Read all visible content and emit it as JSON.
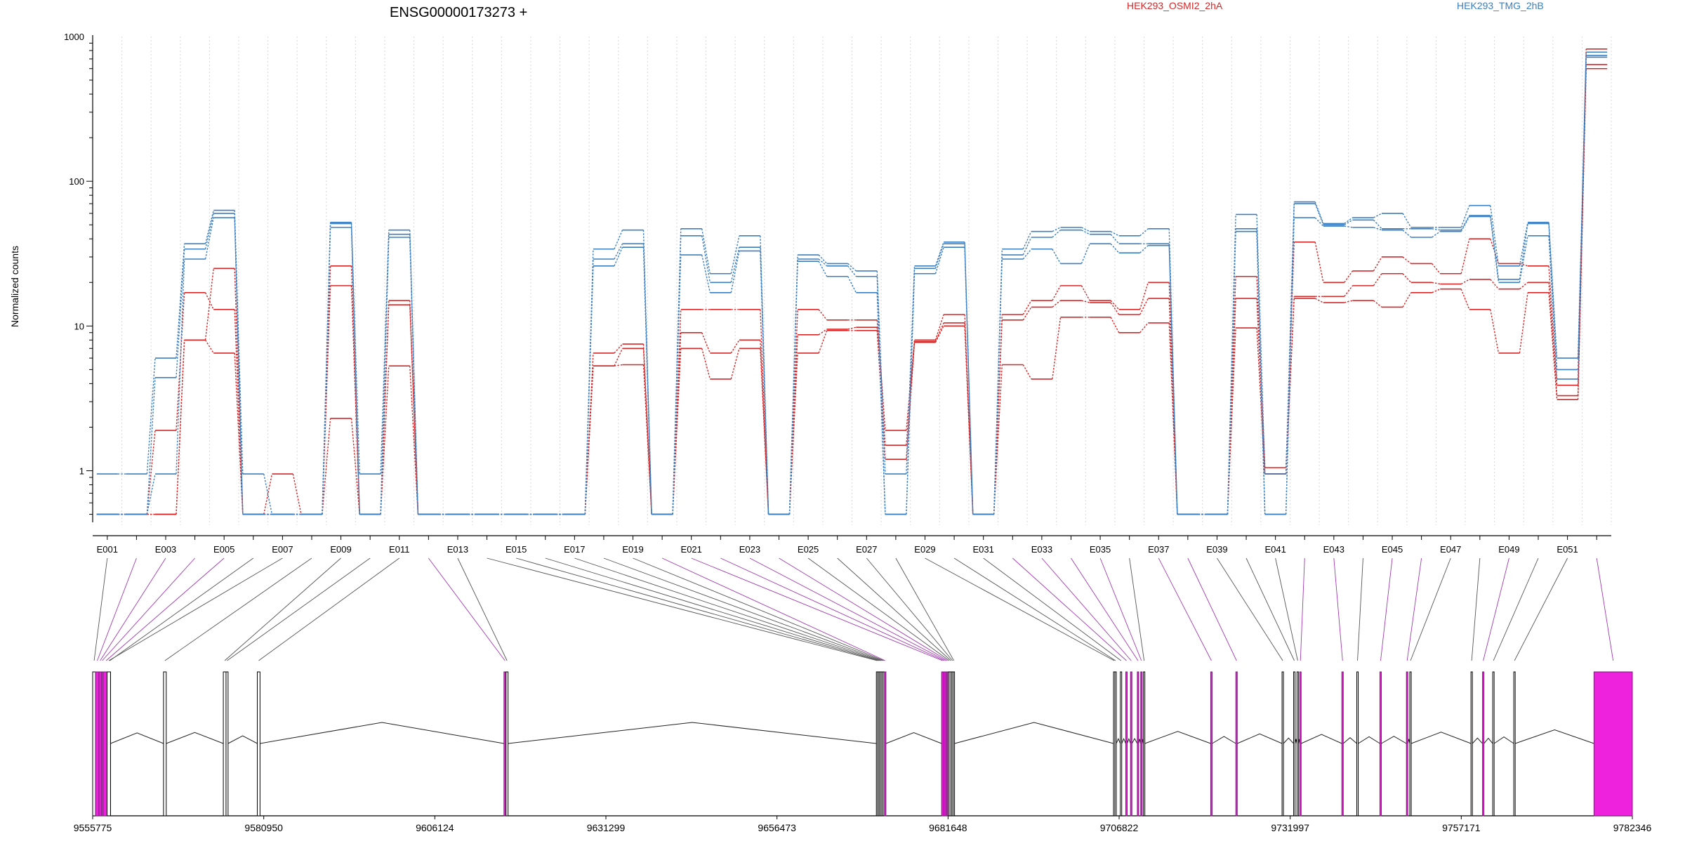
{
  "title": "ENSG00000173273 +",
  "ylabel": "Normalized counts",
  "colors": {
    "HEK293_OSMI2_2hA": "#d62728",
    "HEK293_TMG_2hB": "#3b7fc0",
    "connector_plain": "#555555",
    "connector_highlight": "#a03ab0",
    "highlight_fill": "#ee22dd"
  },
  "chart_data": {
    "type": "line",
    "title": "ENSG00000173273 +",
    "xlabel": "",
    "ylabel": "Normalized counts",
    "yscale": "log",
    "ylim": [
      0.45,
      1000
    ],
    "yticks": [
      "1",
      "10",
      "100",
      "1000"
    ],
    "exons": [
      "E001",
      "E002",
      "E003",
      "E004",
      "E005",
      "E006",
      "E007",
      "E008",
      "E009",
      "E010",
      "E011",
      "E012",
      "E013",
      "E014",
      "E015",
      "E016",
      "E017",
      "E018",
      "E019",
      "E020",
      "E021",
      "E022",
      "E023",
      "E024",
      "E025",
      "E026",
      "E027",
      "E028",
      "E029",
      "E030",
      "E031",
      "E032",
      "E033",
      "E034",
      "E035",
      "E036",
      "E037",
      "E038",
      "E039",
      "E040",
      "E041",
      "E042",
      "E043",
      "E044",
      "E045",
      "E046",
      "E047",
      "E048",
      "E049",
      "E050",
      "E051",
      "E052"
    ],
    "tick_labels": [
      "E001",
      "E003",
      "E005",
      "E007",
      "E009",
      "E011",
      "E013",
      "E015",
      "E017",
      "E019",
      "E021",
      "E023",
      "E025",
      "E027",
      "E029",
      "E031",
      "E033",
      "E035",
      "E037",
      "E039",
      "E041",
      "E043",
      "E045",
      "E047",
      "E049",
      "E051"
    ],
    "series": [
      {
        "name": "HEK293_OSMI2_2hA",
        "group": "HEK293_OSMI2_2hA",
        "values": [
          0.5,
          0.5,
          0.5,
          8,
          25,
          0.5,
          0.95,
          0.5,
          26,
          0.5,
          15,
          0.5,
          0.5,
          0.5,
          0.5,
          0.5,
          0.5,
          6.5,
          7.5,
          0.5,
          13,
          13,
          13,
          0.5,
          13,
          11,
          11,
          1.9,
          8,
          12,
          0.5,
          12,
          15,
          19,
          15,
          13,
          20,
          0.5,
          0.5,
          22,
          1.05,
          38,
          20,
          24,
          30,
          27,
          23,
          40,
          27,
          26,
          3.9,
          820
        ]
      },
      {
        "name": "HEK293_OSMI2_2hA",
        "group": "HEK293_OSMI2_2hA",
        "values": [
          0.5,
          0.5,
          1.9,
          17,
          13,
          0.5,
          0.5,
          0.5,
          19,
          0.5,
          14,
          0.5,
          0.5,
          0.5,
          0.5,
          0.5,
          0.5,
          5.3,
          7,
          0.5,
          9,
          6.5,
          8,
          0.5,
          8.7,
          9.5,
          9.8,
          1.5,
          7.8,
          10.5,
          0.5,
          11,
          13.5,
          15,
          14.5,
          12,
          15.5,
          0.5,
          0.5,
          15.5,
          0.95,
          16,
          16,
          19,
          23,
          20,
          19.5,
          21,
          18,
          20,
          3.3,
          640
        ]
      },
      {
        "name": "HEK293_OSMI2_2hA",
        "group": "HEK293_OSMI2_2hA",
        "values": [
          0.5,
          0.5,
          0.5,
          8,
          6.5,
          0.5,
          0.5,
          0.5,
          2.3,
          0.5,
          5.3,
          0.5,
          0.5,
          0.5,
          0.5,
          0.5,
          0.5,
          5.3,
          5.4,
          0.5,
          7,
          4.3,
          7,
          0.5,
          6.5,
          9.3,
          9.3,
          1.2,
          7.7,
          10,
          0.5,
          5.4,
          4.3,
          11.5,
          11.5,
          9,
          10.5,
          0.5,
          0.5,
          9.7,
          0.95,
          15.5,
          14.5,
          15,
          13.5,
          17,
          18,
          13,
          6.5,
          17,
          3.1,
          600
        ]
      },
      {
        "name": "HEK293_TMG_2hB",
        "group": "HEK293_TMG_2hB",
        "values": [
          0.95,
          0.95,
          6,
          37,
          63,
          0.95,
          0.5,
          0.5,
          52,
          0.95,
          46,
          0.5,
          0.5,
          0.5,
          0.5,
          0.5,
          0.5,
          34,
          46,
          0.5,
          47,
          23,
          42,
          0.5,
          31,
          27,
          24,
          0.95,
          26,
          38,
          0.5,
          34,
          45,
          48,
          45,
          42,
          47,
          0.5,
          0.5,
          59,
          0.95,
          72,
          51,
          56,
          60,
          48,
          48,
          68,
          26,
          52,
          6,
          780
        ]
      },
      {
        "name": "HEK293_TMG_2hB",
        "group": "HEK293_TMG_2hB",
        "values": [
          0.5,
          0.5,
          4.4,
          34,
          60,
          0.5,
          0.5,
          0.5,
          51,
          0.5,
          43,
          0.5,
          0.5,
          0.5,
          0.5,
          0.5,
          0.5,
          29,
          37,
          0.5,
          42,
          20,
          35,
          0.5,
          29,
          26,
          22,
          0.5,
          25,
          37,
          0.5,
          31,
          41,
          46,
          43,
          37,
          37,
          0.5,
          0.5,
          47,
          0.5,
          70,
          50,
          54,
          47,
          47,
          46,
          58,
          21,
          51,
          5,
          740
        ]
      },
      {
        "name": "HEK293_TMG_2hB",
        "group": "HEK293_TMG_2hB",
        "values": [
          0.5,
          0.5,
          0.95,
          29,
          56,
          0.5,
          0.5,
          0.5,
          48,
          0.5,
          41,
          0.5,
          0.5,
          0.5,
          0.5,
          0.5,
          0.5,
          26,
          35,
          0.5,
          31,
          17,
          33,
          0.5,
          28,
          22,
          17,
          0.5,
          23,
          35,
          0.5,
          29,
          34,
          27,
          37,
          32,
          36,
          0.5,
          0.5,
          45,
          0.5,
          56,
          49,
          48,
          46,
          41,
          45,
          57,
          20,
          42,
          4.3,
          720
        ]
      }
    ],
    "legend": [
      "HEK293_OSMI2_2hA",
      "HEK293_TMG_2hB"
    ],
    "coordinate_ticks": [
      "9555775",
      "9580950",
      "9606124",
      "9631299",
      "9656473",
      "9681648",
      "9706822",
      "9731997",
      "9757171",
      "9782346"
    ],
    "gene_span": [
      9555775,
      9782346
    ],
    "highlighted_exons": [
      "E002",
      "E003",
      "E004",
      "E005",
      "E012",
      "E020",
      "E021",
      "E022",
      "E023",
      "E024",
      "E032",
      "E033",
      "E034",
      "E035",
      "E037",
      "E038",
      "E042",
      "E043",
      "E045",
      "E046",
      "E049",
      "E052"
    ],
    "exon_genomic": [
      [
        9555775,
        9556200
      ],
      [
        9556200,
        9556700
      ],
      [
        9556700,
        9557050
      ],
      [
        9557050,
        9557300
      ],
      [
        9557300,
        9558200
      ],
      [
        9558200,
        9558400
      ],
      [
        9558400,
        9557900
      ],
      [
        9566200,
        9566600
      ],
      [
        9575000,
        9575400
      ],
      [
        9575400,
        9575700
      ],
      [
        9580000,
        9580400
      ],
      [
        9616300,
        9616600
      ],
      [
        9616600,
        9616900
      ],
      [
        9671100,
        9671300
      ],
      [
        9671300,
        9671500
      ],
      [
        9671500,
        9671700
      ],
      [
        9671700,
        9671900
      ],
      [
        9671900,
        9672100
      ],
      [
        9672100,
        9672300
      ],
      [
        9672300,
        9672500
      ],
      [
        9680700,
        9680950
      ],
      [
        9680950,
        9681200
      ],
      [
        9681200,
        9681450
      ],
      [
        9681450,
        9681700
      ],
      [
        9681700,
        9681950
      ],
      [
        9681950,
        9682200
      ],
      [
        9682200,
        9682400
      ],
      [
        9682400,
        9682600
      ],
      [
        9706000,
        9706200
      ],
      [
        9706200,
        9706400
      ],
      [
        9707000,
        9707200
      ],
      [
        9707800,
        9708000
      ],
      [
        9708500,
        9708700
      ],
      [
        9709500,
        9709700
      ],
      [
        9710000,
        9710200
      ],
      [
        9710400,
        9710600
      ],
      [
        9720300,
        9720500
      ],
      [
        9724000,
        9724200
      ],
      [
        9730800,
        9731000
      ],
      [
        9732500,
        9732700
      ],
      [
        9733000,
        9733200
      ],
      [
        9733400,
        9733600
      ],
      [
        9739600,
        9739800
      ],
      [
        9741800,
        9742000
      ],
      [
        9745200,
        9745400
      ],
      [
        9749100,
        9749300
      ],
      [
        9749600,
        9749800
      ],
      [
        9758600,
        9758800
      ],
      [
        9760300,
        9760500
      ],
      [
        9761800,
        9762000
      ],
      [
        9764900,
        9765100
      ],
      [
        9776700,
        9782346
      ]
    ]
  }
}
